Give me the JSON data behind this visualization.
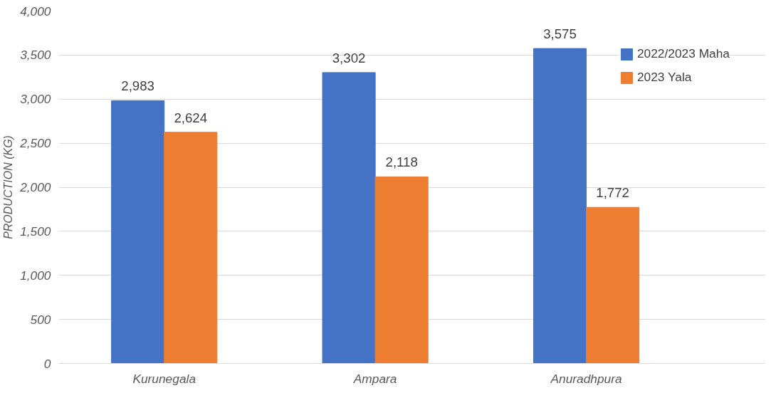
{
  "chart_data": {
    "type": "bar",
    "ylabel": "PRODUCTION (KG)",
    "categories": [
      "Kurunegala",
      "Ampara",
      "Anuradhpura"
    ],
    "series": [
      {
        "name": "2022/2023 Maha",
        "color": "#4472c4",
        "values": [
          2983,
          3302,
          3575
        ],
        "value_labels": [
          "2,983",
          "3,302",
          "3,575"
        ]
      },
      {
        "name": "2023 Yala",
        "color": "#ed7d31",
        "values": [
          2624,
          2118,
          1772
        ],
        "value_labels": [
          "2,624",
          "2,118",
          "1,772"
        ]
      }
    ],
    "ylim": [
      0,
      4000
    ],
    "yticks": [
      {
        "value": 0,
        "label": "0"
      },
      {
        "value": 500,
        "label": "500"
      },
      {
        "value": 1000,
        "label": "1,000"
      },
      {
        "value": 1500,
        "label": "1,500"
      },
      {
        "value": 2000,
        "label": "2,000"
      },
      {
        "value": 2500,
        "label": "2,500"
      },
      {
        "value": 3000,
        "label": "3,000"
      },
      {
        "value": 3500,
        "label": "3,500"
      },
      {
        "value": 4000,
        "label": "4,000"
      }
    ],
    "grid": "y",
    "legend": "top right"
  }
}
